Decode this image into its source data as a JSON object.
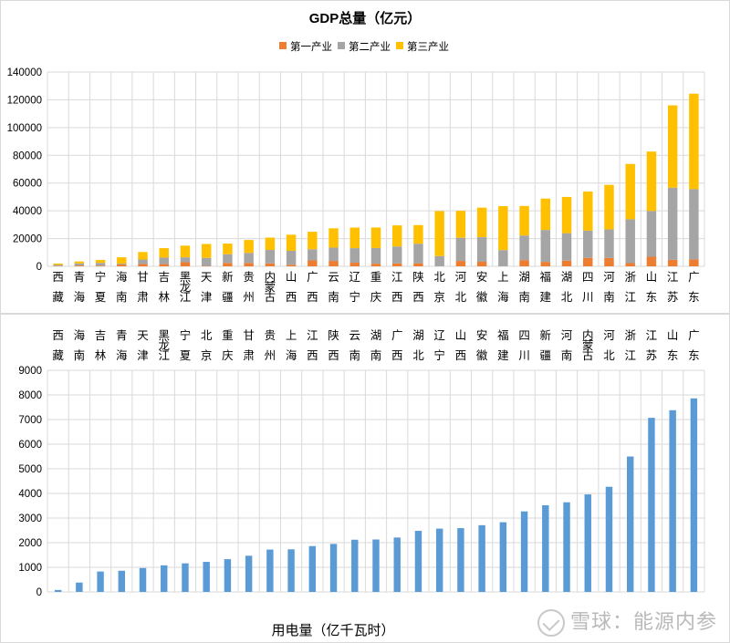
{
  "colors": {
    "primary": "#ED7D31",
    "secondary": "#A5A5A5",
    "tertiary": "#FFC000",
    "electricity": "#5B9BD5",
    "grid": "#D9D9D9",
    "axis_text": "#000000"
  },
  "watermark": {
    "text": "雪球：能源内参",
    "icon": "snowball-logo-icon"
  },
  "chart_data": [
    {
      "type": "bar",
      "stacked": true,
      "title": "GDP总量（亿元）",
      "legend_position": "top",
      "ylim": [
        0,
        140000
      ],
      "yticks": [
        "0",
        "20000",
        "40000",
        "60000",
        "80000",
        "100000",
        "120000",
        "140000"
      ],
      "grid": true,
      "categories": [
        "西藏",
        "青海",
        "宁夏",
        "海南",
        "甘肃",
        "吉林",
        "黑龙江",
        "天津",
        "新疆",
        "贵州",
        "内蒙古",
        "山西",
        "广西",
        "云南",
        "辽宁",
        "重庆",
        "江西",
        "陕西",
        "北京",
        "河北",
        "安徽",
        "上海",
        "湖南",
        "福建",
        "湖北",
        "四川",
        "河南",
        "浙江",
        "山东",
        "江苏",
        "广东"
      ],
      "series": [
        {
          "name": "第一产业",
          "color": "#ED7D31",
          "values": [
            200,
            600,
            500,
            1400,
            1700,
            1600,
            3000,
            300,
            2400,
            2400,
            2100,
            1100,
            4300,
            3900,
            2600,
            1900,
            2100,
            2200,
            100,
            3900,
            3300,
            100,
            4500,
            3200,
            4100,
            6100,
            6000,
            2300,
            6900,
            4700,
            5000
          ]
        },
        {
          "name": "第二产业",
          "color": "#A5A5A5",
          "values": [
            800,
            1500,
            2000,
            600,
            3200,
            4700,
            3500,
            5800,
            6300,
            7300,
            9700,
            10100,
            8000,
            9600,
            10500,
            11300,
            12200,
            14100,
            7300,
            16700,
            17700,
            11600,
            17700,
            23000,
            19800,
            19600,
            20600,
            31600,
            33000,
            52000,
            50600
          ]
        },
        {
          "name": "第三产业",
          "color": "#FFC000",
          "values": [
            1000,
            1400,
            2100,
            4500,
            5400,
            6800,
            8400,
            10000,
            7700,
            9300,
            8900,
            11600,
            12600,
            13900,
            14800,
            14800,
            15200,
            13400,
            32400,
            19400,
            21300,
            31700,
            21300,
            22600,
            26100,
            28200,
            32100,
            39900,
            42800,
            59300,
            68800
          ]
        }
      ]
    },
    {
      "type": "bar",
      "title": "",
      "xlabel": "用电量（亿千瓦时）",
      "ylim": [
        0,
        9000
      ],
      "yticks": [
        "0",
        "1000",
        "2000",
        "3000",
        "4000",
        "5000",
        "6000",
        "7000",
        "8000",
        "9000"
      ],
      "grid": true,
      "categories": [
        "西藏",
        "海南",
        "吉林",
        "青海",
        "天津",
        "黑龙江",
        "宁夏",
        "北京",
        "重庆",
        "甘肃",
        "贵州",
        "上海",
        "江西",
        "陕西",
        "云南",
        "湖南",
        "广西",
        "湖北",
        "辽宁",
        "山西",
        "安徽",
        "福建",
        "四川",
        "新疆",
        "河南",
        "内蒙古",
        "河北",
        "浙江",
        "江苏",
        "山东",
        "广东"
      ],
      "series": [
        {
          "name": "",
          "color": "#5B9BD5",
          "values": [
            80,
            380,
            830,
            860,
            970,
            1080,
            1160,
            1220,
            1330,
            1470,
            1720,
            1730,
            1860,
            1950,
            2120,
            2130,
            2210,
            2480,
            2570,
            2590,
            2710,
            2830,
            3270,
            3520,
            3640,
            3960,
            4270,
            5500,
            7070,
            7380,
            7860
          ]
        }
      ]
    }
  ]
}
